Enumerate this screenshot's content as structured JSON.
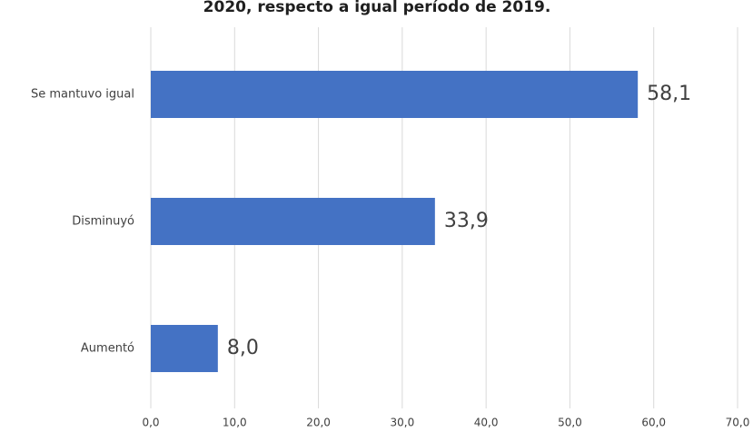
{
  "chart_data": {
    "type": "bar",
    "orientation": "horizontal",
    "title": "2020, respecto a igual período de 2019.",
    "categories": [
      "Se mantuvo igual",
      "Disminuyó",
      "Aumentó"
    ],
    "values": [
      58.1,
      33.9,
      8.0
    ],
    "value_labels": [
      "58,1",
      "33,9",
      "8,0"
    ],
    "color": "#4472c4",
    "xlim": [
      0,
      70
    ],
    "xticks": [
      {
        "value": 0,
        "label": "0,0"
      },
      {
        "value": 10,
        "label": "10,0"
      },
      {
        "value": 20,
        "label": "20,0"
      },
      {
        "value": 30,
        "label": "30,0"
      },
      {
        "value": 40,
        "label": "40,0"
      },
      {
        "value": 50,
        "label": "50,0"
      },
      {
        "value": 60,
        "label": "60,0"
      },
      {
        "value": 70,
        "label": "70,0"
      }
    ],
    "grid": true
  }
}
